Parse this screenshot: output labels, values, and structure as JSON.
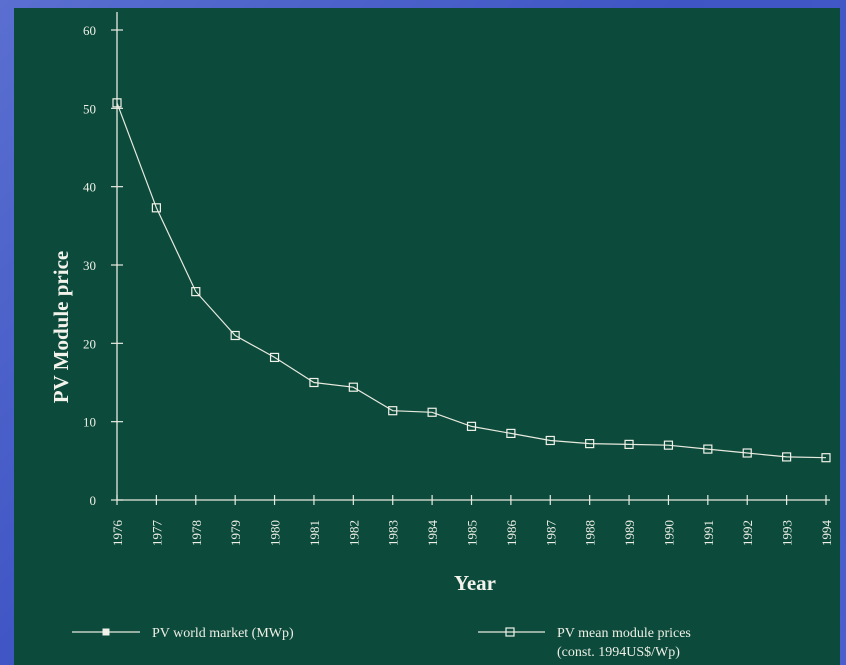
{
  "chart_data": {
    "type": "line",
    "title": "",
    "xlabel": "Year",
    "ylabel": "PV Module price",
    "x": [
      "1976",
      "1977",
      "1978",
      "1979",
      "1980",
      "1981",
      "1982",
      "1983",
      "1984",
      "1985",
      "1986",
      "1987",
      "1988",
      "1989",
      "1990",
      "1991",
      "1992",
      "1993",
      "1994"
    ],
    "series": [
      {
        "name": "PV mean module prices (const. 1994US$/Wp)",
        "values": [
          50.7,
          37.3,
          26.6,
          21.0,
          18.2,
          15.0,
          14.4,
          11.4,
          11.2,
          9.4,
          8.5,
          7.6,
          7.2,
          7.1,
          7.0,
          6.5,
          6.0,
          5.5,
          5.4
        ]
      }
    ],
    "yticks": [
      "0",
      "10",
      "20",
      "30",
      "40",
      "50",
      "60"
    ],
    "ylim": [
      0,
      60
    ],
    "grid": false,
    "legend": {
      "position": "bottom",
      "items": [
        {
          "label": "PV world market (MWp)",
          "marker": "filled-square"
        },
        {
          "label_line1": "PV mean module prices",
          "label_line2": "(const. 1994US$/Wp)",
          "marker": "open-square"
        }
      ]
    },
    "colors": {
      "panel": "#0c4a3b",
      "background": "#4a5fcc",
      "ink": "#e8eadf"
    }
  }
}
